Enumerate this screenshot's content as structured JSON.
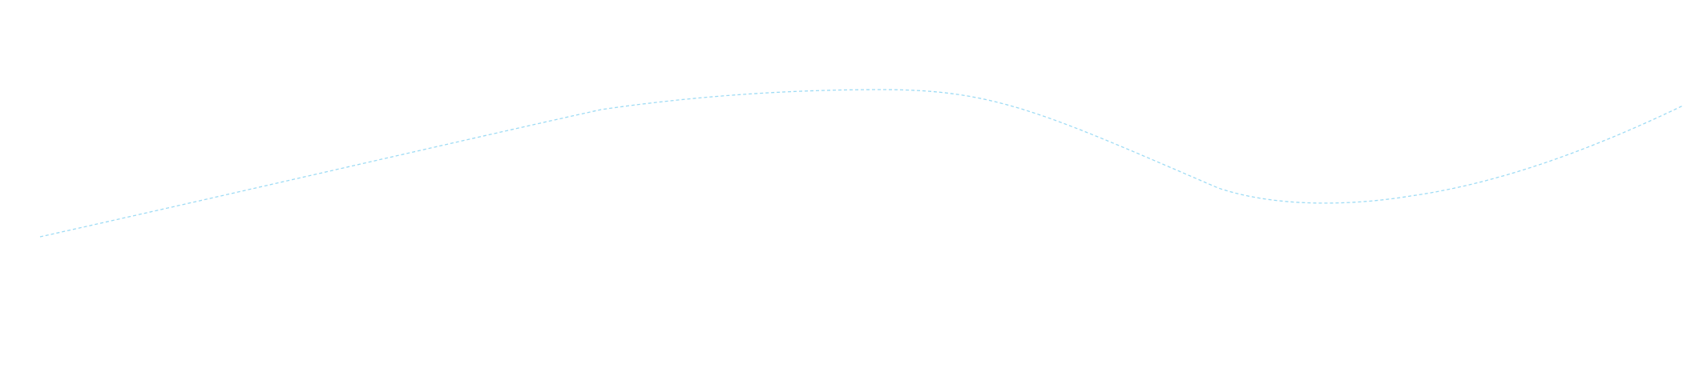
{
  "decoration": {
    "line_color": "#9fdcf5",
    "line_style": "dashed"
  }
}
